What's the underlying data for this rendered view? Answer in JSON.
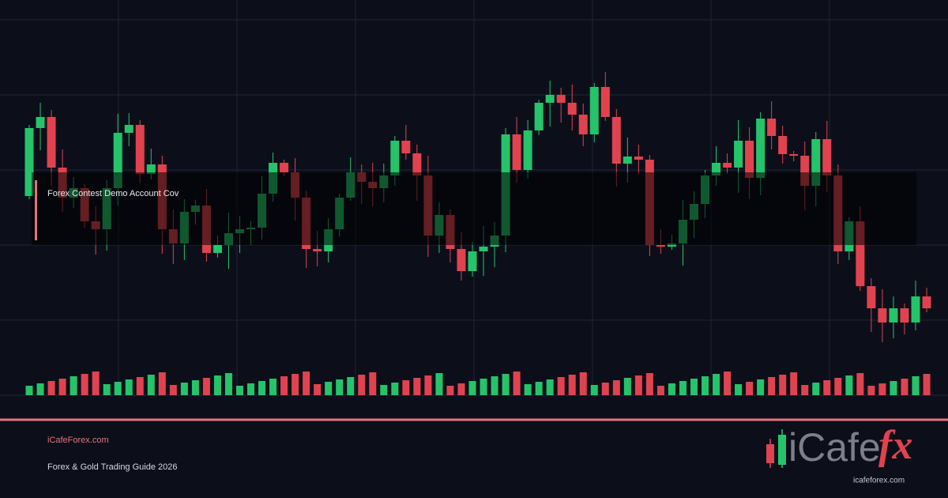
{
  "promo": {
    "badge": "Forex Contest Demo Account Cov"
  },
  "footer": {
    "site": "iCafeForex.com",
    "tagline": "Forex & Gold Trading Guide 2026"
  },
  "logo": {
    "name": "iCafe",
    "accent": "fx",
    "url": "icafeforex.com"
  }
}
